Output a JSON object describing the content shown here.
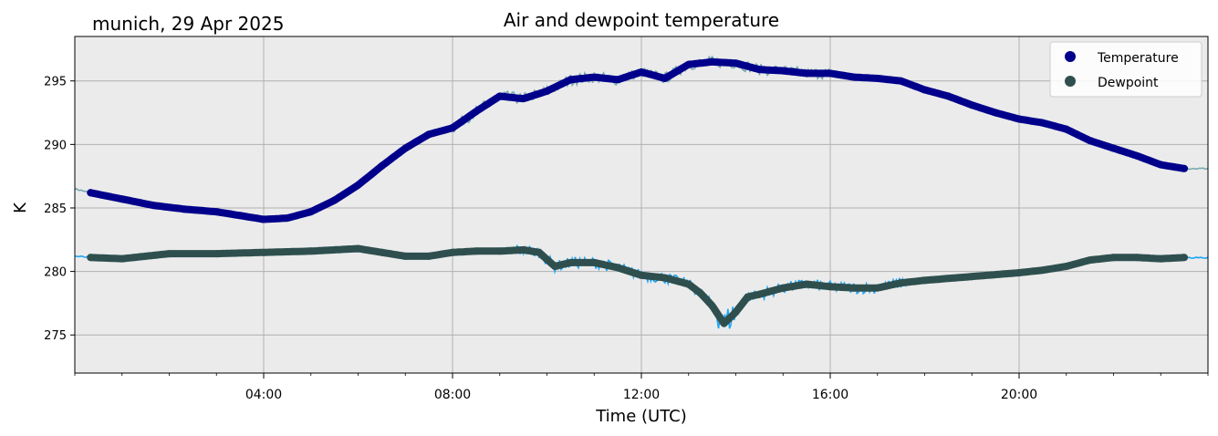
{
  "chart_data": {
    "type": "line",
    "title": "Air and dewpoint temperature",
    "subtitle": "munich, 29 Apr 2025",
    "xlabel": "Time (UTC)",
    "ylabel": "K",
    "xlim": [
      "00:00",
      "24:00"
    ],
    "ylim": [
      272,
      298.5
    ],
    "x_ticks": [
      "04:00",
      "08:00",
      "12:00",
      "16:00",
      "20:00"
    ],
    "y_ticks": [
      275,
      280,
      285,
      290,
      295
    ],
    "grid": true,
    "legend_position": "top-right",
    "background": "#ebebeb",
    "series": [
      {
        "name": "Temperature",
        "color": "#00008b",
        "raw_color": "#7aa9b0",
        "x": [
          "00:00",
          "00:20",
          "01:00",
          "01:40",
          "02:20",
          "03:00",
          "03:30",
          "04:00",
          "04:30",
          "05:00",
          "05:30",
          "06:00",
          "06:30",
          "07:00",
          "07:30",
          "08:00",
          "08:30",
          "09:00",
          "09:30",
          "10:00",
          "10:30",
          "11:00",
          "11:30",
          "12:00",
          "12:30",
          "13:00",
          "13:30",
          "14:00",
          "14:30",
          "15:00",
          "15:30",
          "16:00",
          "16:30",
          "17:00",
          "17:30",
          "18:00",
          "18:30",
          "19:00",
          "19:30",
          "20:00",
          "20:30",
          "21:00",
          "21:30",
          "22:00",
          "22:30",
          "23:00",
          "23:30"
        ],
        "values": [
          286.5,
          286.2,
          285.7,
          285.2,
          284.9,
          284.7,
          284.4,
          284.1,
          284.2,
          284.7,
          285.6,
          286.8,
          288.3,
          289.7,
          290.8,
          291.3,
          292.6,
          293.8,
          293.6,
          294.2,
          295.1,
          295.3,
          295.1,
          295.7,
          295.2,
          296.3,
          296.5,
          296.4,
          295.9,
          295.8,
          295.6,
          295.6,
          295.3,
          295.2,
          295.0,
          294.3,
          293.8,
          293.1,
          292.5,
          292.0,
          291.7,
          291.2,
          290.3,
          289.7,
          289.1,
          288.4,
          288.1
        ]
      },
      {
        "name": "Dewpoint",
        "color": "#2f4f4f",
        "raw_color": "#1ea7f5",
        "x": [
          "00:00",
          "00:20",
          "01:00",
          "02:00",
          "03:00",
          "04:00",
          "05:00",
          "06:00",
          "06:30",
          "07:00",
          "07:30",
          "08:00",
          "08:30",
          "09:00",
          "09:30",
          "09:50",
          "10:10",
          "10:30",
          "11:00",
          "11:30",
          "12:00",
          "12:30",
          "13:00",
          "13:15",
          "13:30",
          "13:45",
          "14:00",
          "14:15",
          "14:30",
          "15:00",
          "15:30",
          "16:00",
          "16:30",
          "17:00",
          "17:30",
          "18:00",
          "19:00",
          "20:00",
          "20:30",
          "21:00",
          "21:30",
          "22:00",
          "22:30",
          "23:00",
          "23:30"
        ],
        "values": [
          281.2,
          281.1,
          281.0,
          281.4,
          281.4,
          281.5,
          281.6,
          281.8,
          281.5,
          281.2,
          281.2,
          281.5,
          281.6,
          281.6,
          281.7,
          281.5,
          280.4,
          280.7,
          280.7,
          280.3,
          279.7,
          279.5,
          279.0,
          278.3,
          277.3,
          275.9,
          276.8,
          278.0,
          278.2,
          278.7,
          279.0,
          278.8,
          278.7,
          278.7,
          279.1,
          279.3,
          279.6,
          279.9,
          280.1,
          280.4,
          280.9,
          281.1,
          281.1,
          281.0,
          281.1
        ]
      }
    ]
  }
}
